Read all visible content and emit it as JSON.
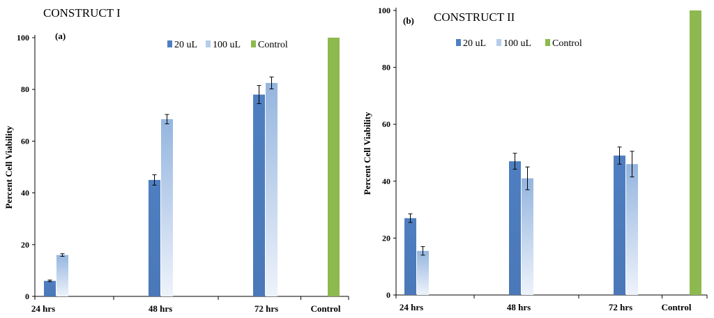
{
  "colors": {
    "series_20": "#4f7fc1",
    "series_20_light": "#c7d7ee",
    "series_100": "#9fbde3",
    "series_100_light": "#e9f0fa",
    "control": "#8db94e",
    "axis": "#000000",
    "error": "#000000"
  },
  "chart_data": [
    {
      "type": "bar",
      "title": "CONSTRUCT  I",
      "panel_label": "(a)",
      "ylabel": "Percent Cell Viability",
      "xlabel": "",
      "ylim": [
        0,
        100
      ],
      "yticks": [
        0,
        20,
        40,
        60,
        80,
        100
      ],
      "categories": [
        "24 hrs",
        "48 hrs",
        "72 hrs",
        "Control"
      ],
      "legend": [
        "20 uL",
        "100 uL",
        "Control"
      ],
      "legend_position": "top",
      "series": [
        {
          "name": "20 uL",
          "values": [
            6,
            45,
            78,
            null
          ],
          "errors": [
            0.3,
            2,
            3.5,
            null
          ]
        },
        {
          "name": "100 uL",
          "values": [
            16,
            68.5,
            82.5,
            null
          ],
          "errors": [
            0.5,
            1.8,
            2.3,
            null
          ]
        },
        {
          "name": "Control",
          "values": [
            null,
            null,
            null,
            100
          ],
          "errors": [
            null,
            null,
            null,
            null
          ]
        }
      ]
    },
    {
      "type": "bar",
      "title": "CONSTRUCT  II",
      "panel_label": "(b)",
      "ylabel": "Percent Cell Viability",
      "xlabel": "",
      "ylim": [
        0,
        100
      ],
      "yticks": [
        0,
        20,
        40,
        60,
        80,
        100
      ],
      "categories": [
        "24 hrs",
        "48 hrs",
        "72 hrs",
        "Control"
      ],
      "legend": [
        "20 uL",
        "100 uL",
        "Control"
      ],
      "legend_position": "top",
      "series": [
        {
          "name": "20 uL",
          "values": [
            27,
            47,
            49,
            null
          ],
          "errors": [
            1.5,
            2.8,
            3,
            null
          ]
        },
        {
          "name": "100 uL",
          "values": [
            15.5,
            41,
            46,
            null
          ],
          "errors": [
            1.5,
            4,
            4.5,
            null
          ]
        },
        {
          "name": "Control",
          "values": [
            null,
            null,
            null,
            100
          ],
          "errors": [
            null,
            null,
            null,
            null
          ]
        }
      ]
    }
  ]
}
